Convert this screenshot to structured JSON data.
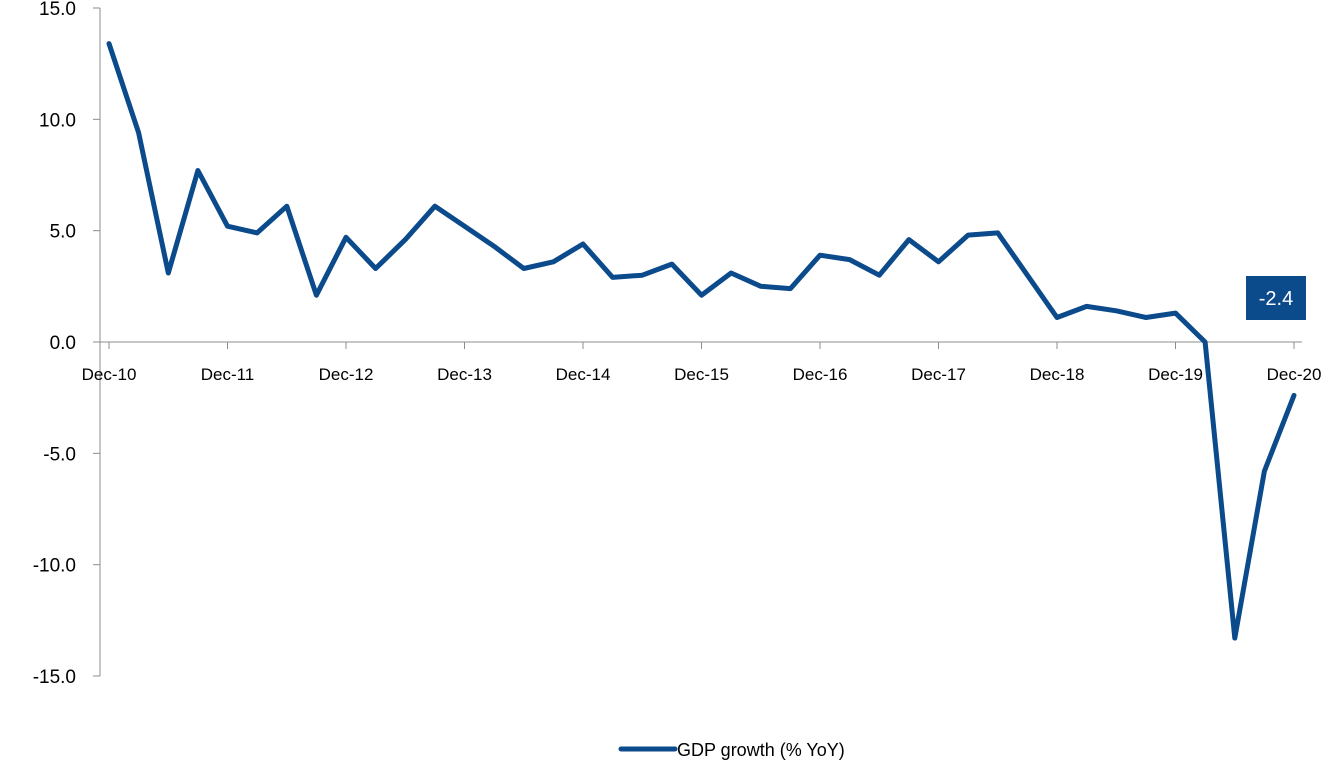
{
  "chart_data": {
    "type": "line",
    "title": "",
    "xlabel": "",
    "ylabel": "",
    "ylim": [
      -15,
      15
    ],
    "yticks": [
      15,
      10,
      5,
      0,
      -5,
      -10,
      -15
    ],
    "ytick_labels": [
      "15.0",
      "10.0",
      "5.0",
      "0.0",
      "-5.0",
      "-10.0",
      "-15.0"
    ],
    "xtick_labels": [
      "Dec-10",
      "Dec-11",
      "Dec-12",
      "Dec-13",
      "Dec-14",
      "Dec-15",
      "Dec-16",
      "Dec-17",
      "Dec-18",
      "Dec-19",
      "Dec-20"
    ],
    "x": [
      "Dec-10",
      "Mar-11",
      "Jun-11",
      "Sep-11",
      "Dec-11",
      "Mar-12",
      "Jun-12",
      "Sep-12",
      "Dec-12",
      "Mar-13",
      "Jun-13",
      "Sep-13",
      "Dec-13",
      "Mar-14",
      "Jun-14",
      "Sep-14",
      "Dec-14",
      "Mar-15",
      "Jun-15",
      "Sep-15",
      "Dec-15",
      "Mar-16",
      "Jun-16",
      "Sep-16",
      "Dec-16",
      "Mar-17",
      "Jun-17",
      "Sep-17",
      "Dec-17",
      "Mar-18",
      "Jun-18",
      "Sep-18",
      "Dec-18",
      "Mar-19",
      "Jun-19",
      "Sep-19",
      "Dec-19",
      "Mar-20",
      "Jun-20",
      "Sep-20",
      "Dec-20"
    ],
    "series": [
      {
        "name": "GDP growth (% YoY)",
        "color": "#0B4A8B",
        "values": [
          13.4,
          9.4,
          3.1,
          7.7,
          5.2,
          4.9,
          6.1,
          2.1,
          4.7,
          3.3,
          4.6,
          6.1,
          5.2,
          4.3,
          3.3,
          3.6,
          4.4,
          2.9,
          3.0,
          3.5,
          2.1,
          3.1,
          2.5,
          2.4,
          3.9,
          3.7,
          3.0,
          4.6,
          3.6,
          4.8,
          4.9,
          3.0,
          1.1,
          1.6,
          1.4,
          1.1,
          1.3,
          0.0,
          -13.3,
          -5.8,
          -2.4
        ]
      }
    ],
    "data_labels": [
      {
        "point": "Dec-20",
        "text": "-2.4",
        "background": "#0B4A8B"
      }
    ],
    "grid": false,
    "legend_position": "bottom-center"
  }
}
